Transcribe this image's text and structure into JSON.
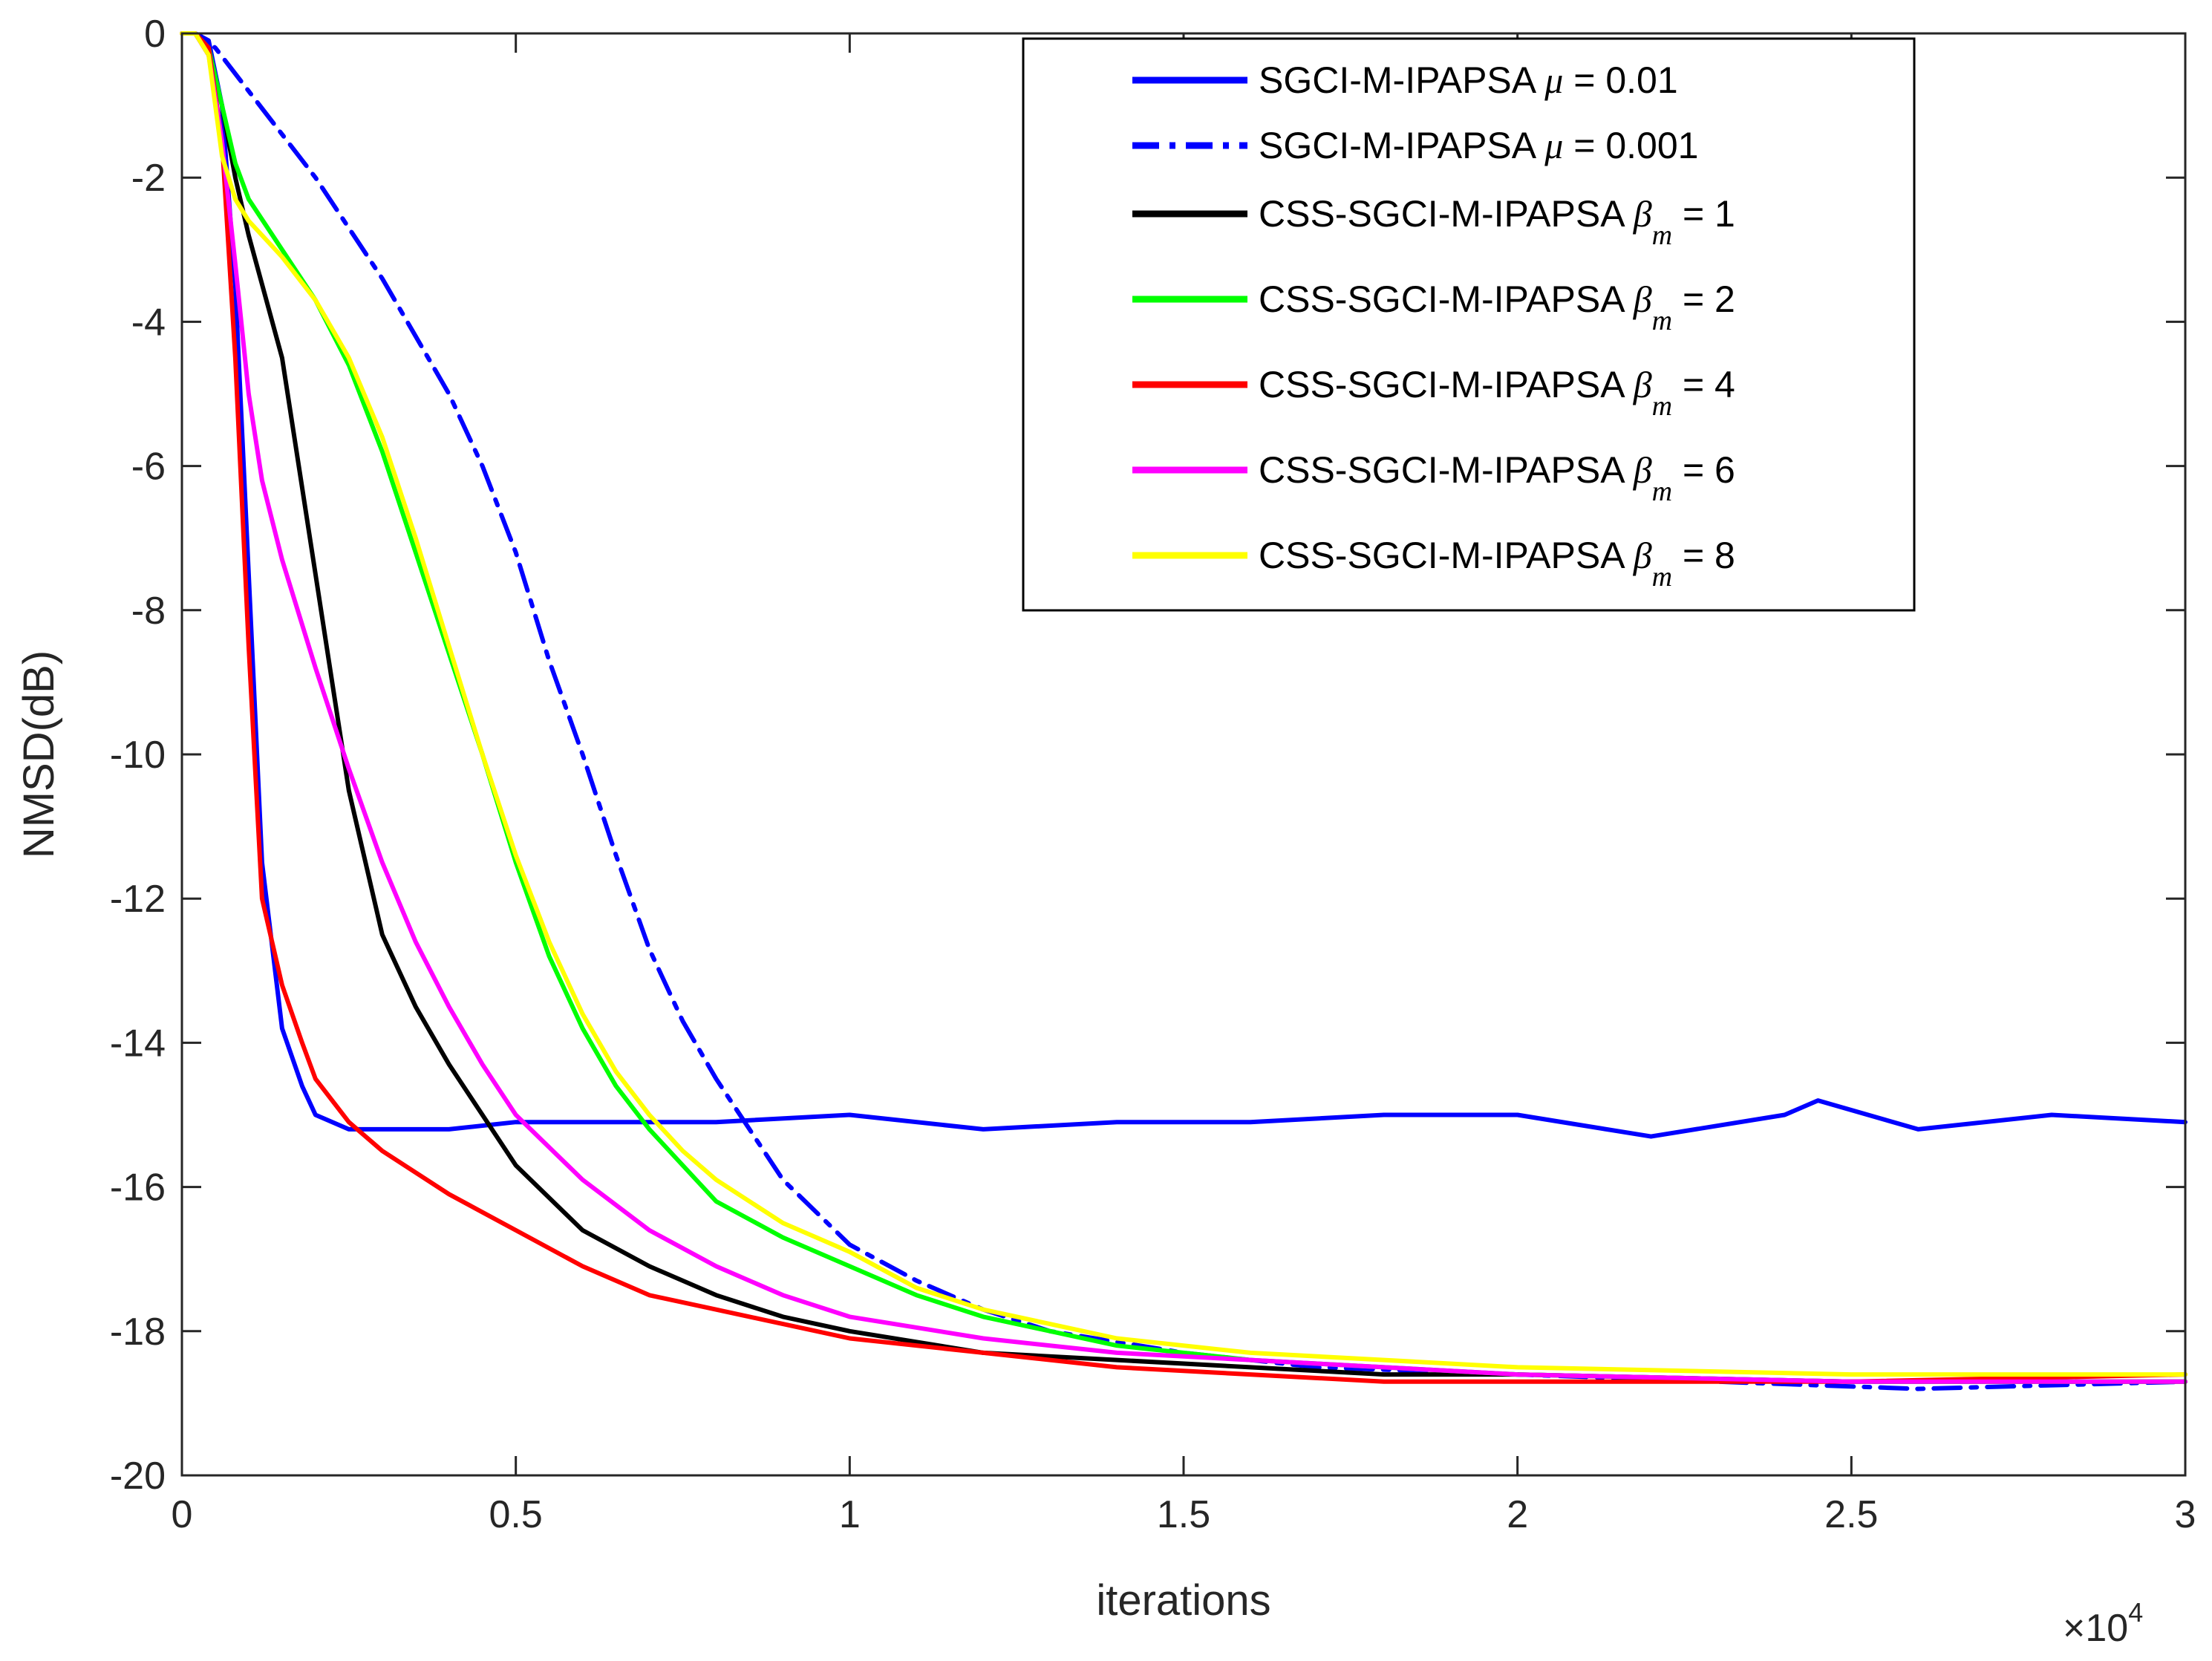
{
  "chart_data": {
    "type": "line",
    "title": "",
    "xlabel": "iterations",
    "ylabel": "NMSD(dB)",
    "x_exponent": "×10",
    "x_exponent_power": "4",
    "xlim": [
      0,
      3
    ],
    "ylim": [
      -20,
      0
    ],
    "xticks": [
      0,
      0.5,
      1,
      1.5,
      2,
      2.5,
      3
    ],
    "xtick_labels": [
      "0",
      "0.5",
      "1",
      "1.5",
      "2",
      "2.5",
      "3"
    ],
    "yticks": [
      0,
      -2,
      -4,
      -6,
      -8,
      -10,
      -12,
      -14,
      -16,
      -18,
      -20
    ],
    "ytick_labels": [
      "0",
      "-2",
      "-4",
      "-6",
      "-8",
      "-10",
      "-12",
      "-14",
      "-16",
      "-18",
      "-20"
    ],
    "grid": false,
    "legend_position": "top-right",
    "series": [
      {
        "name": "SGCI-M-IPAPSA",
        "param_symbol": "μ",
        "param_sub": "",
        "param_value": " = 0.01",
        "color": "#0000ff",
        "dash": "solid",
        "x": [
          0,
          0.02,
          0.04,
          0.06,
          0.08,
          0.1,
          0.12,
          0.15,
          0.18,
          0.2,
          0.25,
          0.3,
          0.4,
          0.5,
          0.6,
          0.8,
          1.0,
          1.2,
          1.4,
          1.6,
          1.8,
          2.0,
          2.2,
          2.4,
          2.45,
          2.6,
          2.8,
          3.0
        ],
        "y": [
          0,
          0,
          -0.1,
          -1.0,
          -3.5,
          -7.5,
          -11.5,
          -13.8,
          -14.6,
          -15.0,
          -15.2,
          -15.2,
          -15.2,
          -15.1,
          -15.1,
          -15.1,
          -15.0,
          -15.2,
          -15.1,
          -15.1,
          -15.0,
          -15.0,
          -15.3,
          -15.0,
          -14.8,
          -15.2,
          -15.0,
          -15.1
        ]
      },
      {
        "name": "SGCI-M-IPAPSA",
        "param_symbol": "μ",
        "param_sub": "",
        "param_value": " = 0.001",
        "color": "#0000ff",
        "dash": "dashdot",
        "x": [
          0,
          0.02,
          0.05,
          0.1,
          0.2,
          0.3,
          0.4,
          0.45,
          0.5,
          0.55,
          0.6,
          0.65,
          0.7,
          0.75,
          0.8,
          0.85,
          0.9,
          1.0,
          1.1,
          1.2,
          1.3,
          1.5,
          1.7,
          2.0,
          2.3,
          2.6,
          3.0
        ],
        "y": [
          0,
          0,
          -0.2,
          -0.8,
          -2.0,
          -3.4,
          -5.0,
          -6.0,
          -7.2,
          -8.7,
          -10.0,
          -11.4,
          -12.7,
          -13.7,
          -14.5,
          -15.2,
          -15.9,
          -16.8,
          -17.3,
          -17.7,
          -18.0,
          -18.3,
          -18.5,
          -18.6,
          -18.7,
          -18.8,
          -18.7
        ]
      },
      {
        "name": "CSS-SGCI-M-IPAPSA",
        "param_symbol": "β",
        "param_sub": "m",
        "param_value": " = 1",
        "color": "#000000",
        "dash": "solid",
        "x": [
          0,
          0.02,
          0.04,
          0.06,
          0.08,
          0.1,
          0.15,
          0.2,
          0.25,
          0.3,
          0.35,
          0.4,
          0.45,
          0.5,
          0.6,
          0.7,
          0.8,
          0.9,
          1.0,
          1.2,
          1.4,
          1.6,
          1.8,
          2.0,
          2.5,
          3.0
        ],
        "y": [
          0,
          0,
          -0.3,
          -1.0,
          -2.0,
          -2.8,
          -4.5,
          -7.5,
          -10.5,
          -12.5,
          -13.5,
          -14.3,
          -15.0,
          -15.7,
          -16.6,
          -17.1,
          -17.5,
          -17.8,
          -18.0,
          -18.3,
          -18.4,
          -18.5,
          -18.6,
          -18.6,
          -18.7,
          -18.7
        ]
      },
      {
        "name": "CSS-SGCI-M-IPAPSA",
        "param_symbol": "β",
        "param_sub": "m",
        "param_value": " = 2",
        "color": "#00ff00",
        "dash": "solid",
        "x": [
          0,
          0.02,
          0.04,
          0.06,
          0.08,
          0.1,
          0.15,
          0.2,
          0.25,
          0.3,
          0.35,
          0.4,
          0.45,
          0.5,
          0.55,
          0.6,
          0.65,
          0.7,
          0.75,
          0.8,
          0.9,
          1.0,
          1.1,
          1.2,
          1.4,
          1.6,
          2.0,
          2.5,
          3.0
        ],
        "y": [
          0,
          0,
          -0.2,
          -1.0,
          -1.8,
          -2.3,
          -3.0,
          -3.7,
          -4.6,
          -5.8,
          -7.2,
          -8.6,
          -10.0,
          -11.5,
          -12.8,
          -13.8,
          -14.6,
          -15.2,
          -15.7,
          -16.2,
          -16.7,
          -17.1,
          -17.5,
          -17.8,
          -18.2,
          -18.4,
          -18.6,
          -18.7,
          -18.7
        ]
      },
      {
        "name": "CSS-SGCI-M-IPAPSA",
        "param_symbol": "β",
        "param_sub": "m",
        "param_value": " = 4",
        "color": "#ff0000",
        "dash": "solid",
        "x": [
          0,
          0.02,
          0.04,
          0.06,
          0.08,
          0.1,
          0.12,
          0.15,
          0.18,
          0.2,
          0.25,
          0.3,
          0.4,
          0.5,
          0.6,
          0.7,
          0.8,
          0.9,
          1.0,
          1.2,
          1.4,
          1.6,
          1.8,
          2.0,
          2.5,
          3.0
        ],
        "y": [
          0,
          0,
          -0.2,
          -1.5,
          -4.5,
          -8.5,
          -12.0,
          -13.2,
          -14.0,
          -14.5,
          -15.1,
          -15.5,
          -16.1,
          -16.6,
          -17.1,
          -17.5,
          -17.7,
          -17.9,
          -18.1,
          -18.3,
          -18.5,
          -18.6,
          -18.7,
          -18.7,
          -18.7,
          -18.6
        ]
      },
      {
        "name": "CSS-SGCI-M-IPAPSA",
        "param_symbol": "β",
        "param_sub": "m",
        "param_value": " = 6",
        "color": "#ff00ff",
        "dash": "solid",
        "x": [
          0,
          0.02,
          0.04,
          0.06,
          0.08,
          0.1,
          0.12,
          0.15,
          0.2,
          0.25,
          0.3,
          0.35,
          0.4,
          0.45,
          0.5,
          0.6,
          0.7,
          0.8,
          0.9,
          1.0,
          1.2,
          1.4,
          1.6,
          2.0,
          2.5,
          3.0
        ],
        "y": [
          0,
          0,
          -0.3,
          -1.5,
          -3.2,
          -5.0,
          -6.2,
          -7.3,
          -8.8,
          -10.2,
          -11.5,
          -12.6,
          -13.5,
          -14.3,
          -15.0,
          -15.9,
          -16.6,
          -17.1,
          -17.5,
          -17.8,
          -18.1,
          -18.3,
          -18.4,
          -18.6,
          -18.7,
          -18.7
        ]
      },
      {
        "name": "CSS-SGCI-M-IPAPSA",
        "param_symbol": "β",
        "param_sub": "m",
        "param_value": " = 8",
        "color": "#ffff00",
        "dash": "solid",
        "x": [
          0,
          0.02,
          0.04,
          0.06,
          0.08,
          0.1,
          0.15,
          0.2,
          0.25,
          0.3,
          0.35,
          0.4,
          0.45,
          0.5,
          0.55,
          0.6,
          0.65,
          0.7,
          0.75,
          0.8,
          0.9,
          1.0,
          1.1,
          1.2,
          1.4,
          1.6,
          2.0,
          2.5,
          3.0
        ],
        "y": [
          0,
          0,
          -0.3,
          -1.7,
          -2.3,
          -2.6,
          -3.1,
          -3.7,
          -4.5,
          -5.6,
          -7.0,
          -8.5,
          -10.0,
          -11.4,
          -12.6,
          -13.6,
          -14.4,
          -15.0,
          -15.5,
          -15.9,
          -16.5,
          -16.9,
          -17.4,
          -17.7,
          -18.1,
          -18.3,
          -18.5,
          -18.6,
          -18.6
        ]
      }
    ]
  }
}
